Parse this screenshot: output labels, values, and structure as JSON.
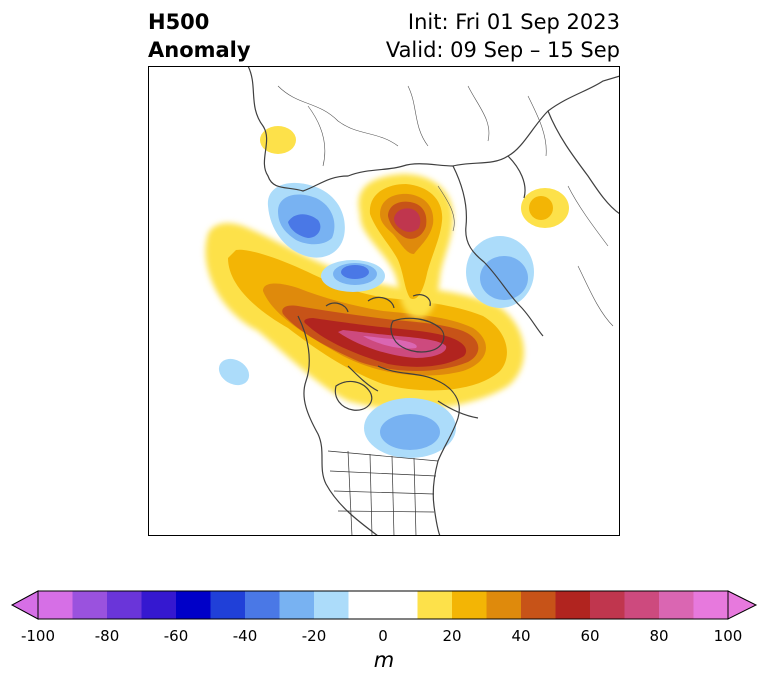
{
  "header": {
    "title_line1": "H500",
    "title_line2": "Anomaly",
    "init": "Init: Fri 01 Sep 2023",
    "valid": "Valid: 09 Sep – 15 Sep"
  },
  "colorbar": {
    "ticks": [
      "-100",
      "-80",
      "-60",
      "-40",
      "-20",
      "0",
      "20",
      "40",
      "60",
      "80",
      "100"
    ],
    "unit": "m",
    "colors": [
      "#d66fe6",
      "#9a52de",
      "#6a35d9",
      "#3518d0",
      "#0000c8",
      "#2040d8",
      "#4a78e6",
      "#78b2f2",
      "#acdcfa",
      "#ffffff",
      "#ffffff",
      "#fde14a",
      "#f3b505",
      "#df8a0c",
      "#c75318",
      "#b1241f",
      "#c0364e",
      "#cd4a7e",
      "#da66b2",
      "#e779dd"
    ]
  },
  "map": {
    "projection": "polar-stereographic",
    "features": [
      "coastlines",
      "country-borders",
      "us-state-borders"
    ]
  }
}
